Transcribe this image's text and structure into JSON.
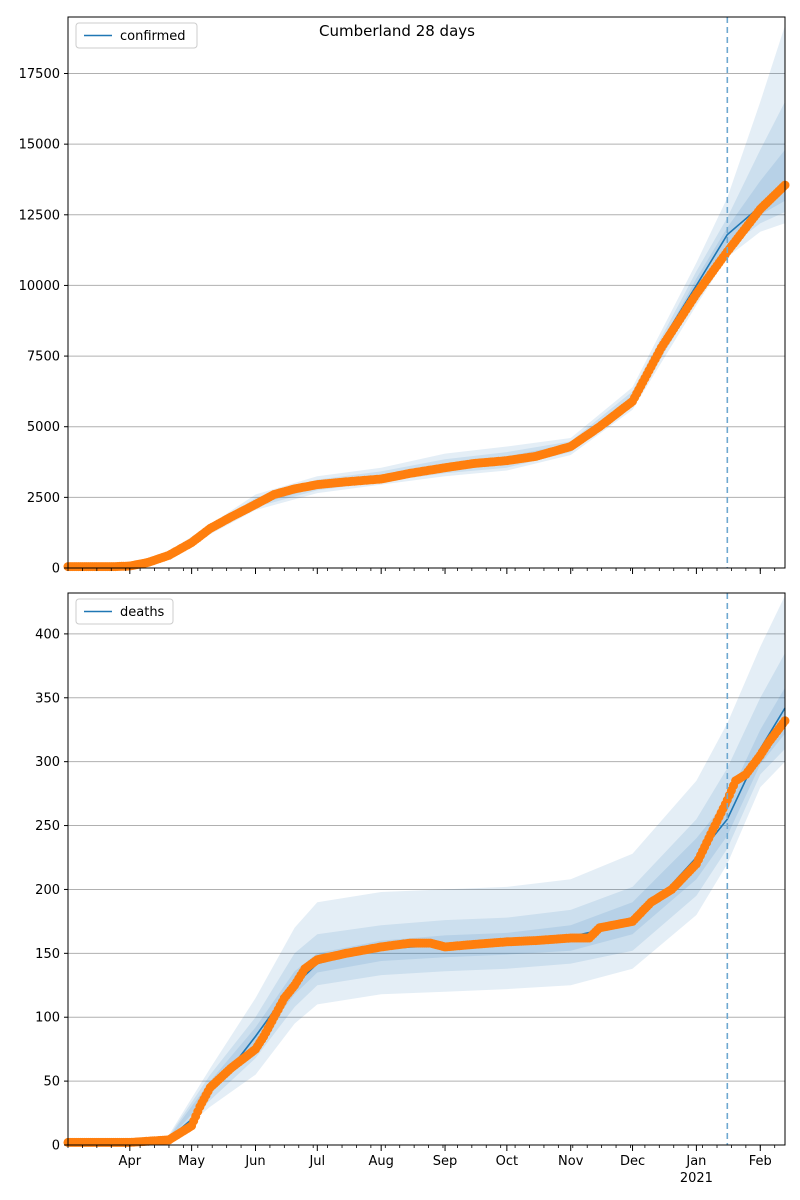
{
  "figure": {
    "title": "Cumberland 28 days"
  },
  "colors": {
    "model": "#1f77b4",
    "observed": "#ff7f0e",
    "band": "#1f77b4",
    "grid": "#b0b0b0",
    "forecast_line": "#6fa8d0"
  },
  "chart_data": [
    {
      "type": "line",
      "legend": {
        "label": "confirmed",
        "placement": "upper-left"
      },
      "grid": "y",
      "x_range": [
        "2020-03-02",
        "2021-02-13"
      ],
      "x_ticks": [
        "Apr",
        "May",
        "Jun",
        "Jul",
        "Aug",
        "Sep",
        "Oct",
        "Nov",
        "Dec",
        "Jan",
        "Feb"
      ],
      "x_year_label": "2021",
      "ylim": [
        0,
        19500
      ],
      "y_ticks": [
        0,
        2500,
        5000,
        7500,
        10000,
        12500,
        15000,
        17500
      ],
      "forecast_start": "2021-01-16",
      "model": {
        "name": "confirmed",
        "x": [
          "2020-03-02",
          "2020-03-20",
          "2020-04-01",
          "2020-04-10",
          "2020-04-20",
          "2020-05-01",
          "2020-05-10",
          "2020-05-20",
          "2020-06-01",
          "2020-06-10",
          "2020-06-20",
          "2020-07-01",
          "2020-07-15",
          "2020-08-01",
          "2020-08-15",
          "2020-09-01",
          "2020-09-15",
          "2020-10-01",
          "2020-10-15",
          "2020-11-01",
          "2020-11-15",
          "2020-12-01",
          "2020-12-15",
          "2021-01-01",
          "2021-01-16",
          "2021-02-01",
          "2021-02-13"
        ],
        "y": [
          0,
          10,
          80,
          200,
          500,
          1000,
          1450,
          1900,
          2300,
          2600,
          2800,
          2950,
          3050,
          3200,
          3400,
          3550,
          3700,
          3800,
          3950,
          4300,
          5000,
          6000,
          8000,
          10000,
          11800,
          12800,
          13600
        ]
      },
      "observed": {
        "x": [
          "2020-03-02",
          "2020-03-15",
          "2020-03-25",
          "2020-04-01",
          "2020-04-10",
          "2020-04-20",
          "2020-05-01",
          "2020-05-10",
          "2020-05-20",
          "2020-06-01",
          "2020-06-10",
          "2020-06-20",
          "2020-07-01",
          "2020-07-15",
          "2020-08-01",
          "2020-08-15",
          "2020-09-01",
          "2020-09-15",
          "2020-10-01",
          "2020-10-15",
          "2020-11-01",
          "2020-11-15",
          "2020-12-01",
          "2020-12-15",
          "2021-01-01",
          "2021-01-16",
          "2021-02-01",
          "2021-02-13"
        ],
        "y": [
          50,
          50,
          50,
          70,
          200,
          450,
          900,
          1400,
          1800,
          2250,
          2600,
          2800,
          2950,
          3050,
          3150,
          3350,
          3550,
          3700,
          3800,
          3950,
          4300,
          5000,
          5900,
          7800,
          9700,
          11200,
          12700,
          13550
        ]
      },
      "bands": [
        {
          "x": [
            "2020-04-20",
            "2020-06-01",
            "2020-07-01",
            "2020-08-01",
            "2020-09-01",
            "2020-10-01",
            "2020-11-01",
            "2020-12-01",
            "2021-01-01",
            "2021-01-16",
            "2021-02-01",
            "2021-02-13"
          ],
          "lower": [
            420,
            2050,
            2650,
            2950,
            3250,
            3450,
            4000,
            5600,
            9300,
            11000,
            11900,
            12200
          ],
          "upper": [
            580,
            2600,
            3250,
            3550,
            4050,
            4300,
            4600,
            6400,
            10800,
            13100,
            16500,
            19200
          ]
        },
        {
          "x": [
            "2020-04-20",
            "2020-06-01",
            "2020-07-01",
            "2020-08-01",
            "2020-09-01",
            "2020-10-01",
            "2020-11-01",
            "2020-12-01",
            "2021-01-01",
            "2021-01-16",
            "2021-02-01",
            "2021-02-13"
          ],
          "lower": [
            450,
            2150,
            2750,
            3050,
            3350,
            3550,
            4100,
            5750,
            9500,
            11300,
            12200,
            12600
          ],
          "upper": [
            550,
            2480,
            3130,
            3420,
            3850,
            4100,
            4480,
            6250,
            10500,
            12400,
            14800,
            16500
          ]
        },
        {
          "x": [
            "2020-04-20",
            "2020-06-01",
            "2020-07-01",
            "2020-08-01",
            "2020-09-01",
            "2020-10-01",
            "2020-11-01",
            "2020-12-01",
            "2021-01-01",
            "2021-01-16",
            "2021-02-01",
            "2021-02-13"
          ],
          "lower": [
            475,
            2220,
            2850,
            3130,
            3460,
            3650,
            4200,
            5850,
            9700,
            11500,
            12500,
            13000
          ],
          "upper": [
            525,
            2380,
            3050,
            3300,
            3700,
            3950,
            4400,
            6100,
            10250,
            12050,
            13700,
            14800
          ]
        }
      ]
    },
    {
      "type": "line",
      "legend": {
        "label": "deaths",
        "placement": "upper-left"
      },
      "grid": "y",
      "x_range": [
        "2020-03-02",
        "2021-02-13"
      ],
      "x_ticks": [
        "Apr",
        "May",
        "Jun",
        "Jul",
        "Aug",
        "Sep",
        "Oct",
        "Nov",
        "Dec",
        "Jan",
        "Feb"
      ],
      "x_year_label": "2021",
      "ylim": [
        0,
        432
      ],
      "y_ticks": [
        0,
        50,
        100,
        150,
        200,
        250,
        300,
        350,
        400
      ],
      "forecast_start": "2021-01-16",
      "model": {
        "name": "deaths",
        "x": [
          "2020-03-02",
          "2020-04-01",
          "2020-04-20",
          "2020-05-01",
          "2020-05-10",
          "2020-05-20",
          "2020-06-01",
          "2020-06-10",
          "2020-06-20",
          "2020-07-01",
          "2020-07-15",
          "2020-08-01",
          "2020-08-15",
          "2020-09-01",
          "2020-09-15",
          "2020-10-01",
          "2020-10-15",
          "2020-11-01",
          "2020-11-15",
          "2020-12-01",
          "2020-12-15",
          "2021-01-01",
          "2021-01-16",
          "2021-02-01",
          "2021-02-13"
        ],
        "y": [
          0,
          1,
          5,
          20,
          45,
          60,
          85,
          105,
          125,
          142,
          148,
          153,
          155,
          156,
          157,
          158,
          160,
          163,
          168,
          178,
          195,
          225,
          255,
          310,
          342
        ]
      },
      "observed": {
        "x": [
          "2020-03-02",
          "2020-03-20",
          "2020-04-01",
          "2020-04-10",
          "2020-04-20",
          "2020-05-01",
          "2020-05-05",
          "2020-05-10",
          "2020-05-20",
          "2020-06-01",
          "2020-06-05",
          "2020-06-10",
          "2020-06-15",
          "2020-06-20",
          "2020-06-25",
          "2020-07-01",
          "2020-07-15",
          "2020-08-01",
          "2020-08-15",
          "2020-08-25",
          "2020-09-01",
          "2020-09-15",
          "2020-10-01",
          "2020-10-15",
          "2020-11-01",
          "2020-11-10",
          "2020-11-15",
          "2020-12-01",
          "2020-12-10",
          "2020-12-20",
          "2021-01-01",
          "2021-01-10",
          "2021-01-16",
          "2021-01-20",
          "2021-01-25",
          "2021-02-01",
          "2021-02-05",
          "2021-02-13"
        ],
        "y": [
          2,
          2,
          2,
          3,
          4,
          15,
          30,
          45,
          60,
          75,
          85,
          100,
          115,
          125,
          138,
          145,
          150,
          155,
          158,
          158,
          155,
          157,
          159,
          160,
          162,
          162,
          170,
          175,
          190,
          200,
          220,
          250,
          270,
          285,
          290,
          305,
          315,
          332
        ]
      },
      "bands": [
        {
          "x": [
            "2020-04-20",
            "2020-05-10",
            "2020-06-01",
            "2020-06-20",
            "2020-07-01",
            "2020-08-01",
            "2020-09-01",
            "2020-10-01",
            "2020-11-01",
            "2020-12-01",
            "2021-01-01",
            "2021-01-16",
            "2021-02-01",
            "2021-02-13"
          ],
          "lower": [
            3,
            30,
            55,
            95,
            110,
            118,
            120,
            122,
            125,
            138,
            180,
            220,
            280,
            300
          ],
          "upper": [
            8,
            60,
            115,
            170,
            190,
            198,
            200,
            202,
            208,
            228,
            285,
            330,
            390,
            430
          ]
        },
        {
          "x": [
            "2020-04-20",
            "2020-05-10",
            "2020-06-01",
            "2020-06-20",
            "2020-07-01",
            "2020-08-01",
            "2020-09-01",
            "2020-10-01",
            "2020-11-01",
            "2020-12-01",
            "2021-01-01",
            "2021-01-16",
            "2021-02-01",
            "2021-02-13"
          ],
          "lower": [
            4,
            35,
            68,
            108,
            125,
            133,
            136,
            138,
            142,
            152,
            195,
            232,
            290,
            310
          ],
          "upper": [
            7,
            55,
            100,
            150,
            165,
            172,
            176,
            178,
            184,
            202,
            255,
            295,
            350,
            385
          ]
        },
        {
          "x": [
            "2020-04-20",
            "2020-05-10",
            "2020-06-01",
            "2020-06-20",
            "2020-07-01",
            "2020-08-01",
            "2020-09-01",
            "2020-10-01",
            "2020-11-01",
            "2020-12-01",
            "2021-01-01",
            "2021-01-16",
            "2021-02-01",
            "2021-02-13"
          ],
          "lower": [
            4.5,
            40,
            78,
            118,
            135,
            144,
            147,
            149,
            152,
            165,
            208,
            242,
            298,
            322
          ],
          "upper": [
            6,
            50,
            92,
            136,
            150,
            160,
            164,
            166,
            172,
            190,
            240,
            270,
            325,
            358
          ]
        }
      ]
    }
  ]
}
